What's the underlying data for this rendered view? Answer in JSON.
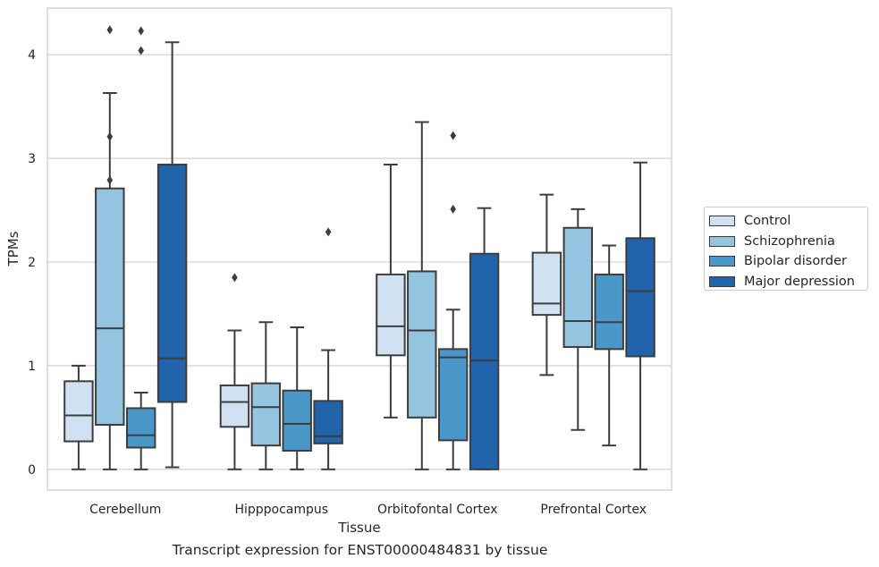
{
  "chart_data": {
    "type": "box",
    "title": "Transcript expression for ENST00000484831 by tissue",
    "xlabel": "Tissue",
    "ylabel": "TPMs",
    "ylim": [
      -0.2,
      4.45
    ],
    "yticks": [
      "0",
      "1",
      "2",
      "3",
      "4"
    ],
    "ytick_values": [
      0,
      1,
      2,
      3,
      4
    ],
    "grid": true,
    "legend_position": "right",
    "categories": [
      "Cerebellum",
      "Hipppocampus",
      "Orbitofontal Cortex",
      "Prefrontal Cortex"
    ],
    "series": [
      {
        "name": "Control",
        "color": "#d0e1f2",
        "boxes": [
          {
            "whislo": 0.0,
            "q1": 0.27,
            "med": 0.52,
            "q3": 0.85,
            "whishi": 1.0,
            "fliers": []
          },
          {
            "whislo": 0.0,
            "q1": 0.41,
            "med": 0.65,
            "q3": 0.81,
            "whishi": 1.34,
            "fliers": [
              1.85
            ]
          },
          {
            "whislo": 0.5,
            "q1": 1.1,
            "med": 1.38,
            "q3": 1.88,
            "whishi": 2.94,
            "fliers": []
          },
          {
            "whislo": 0.91,
            "q1": 1.49,
            "med": 1.6,
            "q3": 2.09,
            "whishi": 2.65,
            "fliers": []
          }
        ]
      },
      {
        "name": "Schizophrenia",
        "color": "#94c4df",
        "boxes": [
          {
            "whislo": 0.0,
            "q1": 0.43,
            "med": 1.36,
            "q3": 2.71,
            "whishi": 3.63,
            "fliers": [
              2.79,
              3.21,
              4.24
            ]
          },
          {
            "whislo": 0.0,
            "q1": 0.23,
            "med": 0.6,
            "q3": 0.83,
            "whishi": 1.42,
            "fliers": []
          },
          {
            "whislo": 0.0,
            "q1": 0.5,
            "med": 1.34,
            "q3": 1.91,
            "whishi": 3.35,
            "fliers": []
          },
          {
            "whislo": 0.38,
            "q1": 1.18,
            "med": 1.43,
            "q3": 2.33,
            "whishi": 2.51,
            "fliers": []
          }
        ]
      },
      {
        "name": "Bipolar disorder",
        "color": "#4a98c9",
        "boxes": [
          {
            "whislo": 0.0,
            "q1": 0.21,
            "med": 0.33,
            "q3": 0.59,
            "whishi": 0.74,
            "fliers": [
              4.04,
              4.23
            ]
          },
          {
            "whislo": 0.0,
            "q1": 0.18,
            "med": 0.44,
            "q3": 0.76,
            "whishi": 1.37,
            "fliers": []
          },
          {
            "whislo": 0.0,
            "q1": 0.28,
            "med": 1.08,
            "q3": 1.16,
            "whishi": 1.54,
            "fliers": [
              2.51,
              3.22
            ]
          },
          {
            "whislo": 0.23,
            "q1": 1.16,
            "med": 1.42,
            "q3": 1.88,
            "whishi": 2.16,
            "fliers": []
          }
        ]
      },
      {
        "name": "Major depression",
        "color": "#2164ab",
        "boxes": [
          {
            "whislo": 0.02,
            "q1": 0.65,
            "med": 1.07,
            "q3": 2.94,
            "whishi": 4.12,
            "fliers": []
          },
          {
            "whislo": 0.0,
            "q1": 0.25,
            "med": 0.32,
            "q3": 0.66,
            "whishi": 1.15,
            "fliers": [
              2.29
            ]
          },
          {
            "whislo": 0.0,
            "q1": 0.0,
            "med": 1.05,
            "q3": 2.08,
            "whishi": 2.52,
            "fliers": []
          },
          {
            "whislo": 0.0,
            "q1": 1.09,
            "med": 1.72,
            "q3": 2.23,
            "whishi": 2.96,
            "fliers": []
          }
        ]
      }
    ]
  }
}
